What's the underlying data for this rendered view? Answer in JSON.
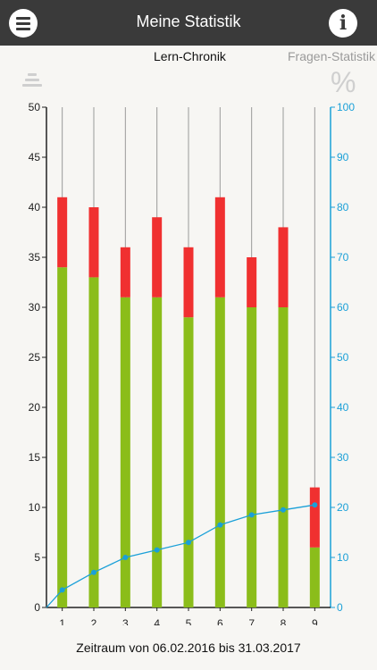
{
  "header": {
    "title": "Meine Statistik",
    "menu_icon": "hamburger-menu-icon",
    "info_icon": "info-icon",
    "info_glyph": "i"
  },
  "tabs": [
    {
      "label": "Lern-Chronik",
      "active": true
    },
    {
      "label": "Fragen-Statistik",
      "active": false
    }
  ],
  "toolbar": {
    "sort_icon": "sort-lines-icon",
    "percent_icon": "percent-icon",
    "percent_glyph": "%"
  },
  "chart_data": {
    "type": "bar",
    "stacked": true,
    "categories": [
      "1",
      "2",
      "3",
      "4",
      "5",
      "6",
      "7",
      "8",
      "9"
    ],
    "series": [
      {
        "color": "#8bbd1a",
        "values": [
          34,
          33,
          31,
          31,
          29,
          31,
          30,
          30,
          6
        ]
      },
      {
        "color": "#f03030",
        "values": [
          7,
          7,
          5,
          8,
          7,
          10,
          5,
          8,
          6
        ]
      },
      {
        "color": "#1aa0d8",
        "axis": "right",
        "type": "line",
        "values": [
          3.5,
          7,
          10,
          11.5,
          13,
          16.5,
          18.5,
          19.5,
          20.5
        ]
      }
    ],
    "ylim": [
      0,
      50
    ],
    "yticks": [
      "0",
      "5",
      "10",
      "15",
      "20",
      "25",
      "30",
      "35",
      "40",
      "45",
      "50"
    ],
    "y2lim": [
      0,
      100
    ],
    "y2ticks": [
      "0",
      "10",
      "20",
      "30",
      "40",
      "50",
      "60",
      "70",
      "80",
      "90",
      "100"
    ],
    "xlabel": "",
    "ylabel": "",
    "grid": true,
    "colors": {
      "axis": "#222222",
      "right_axis": "#1aa0d8",
      "grid": "#9a9a9a"
    }
  },
  "footer": {
    "label": "Zeitraum von 06.02.2016 bis 31.03.2017"
  }
}
